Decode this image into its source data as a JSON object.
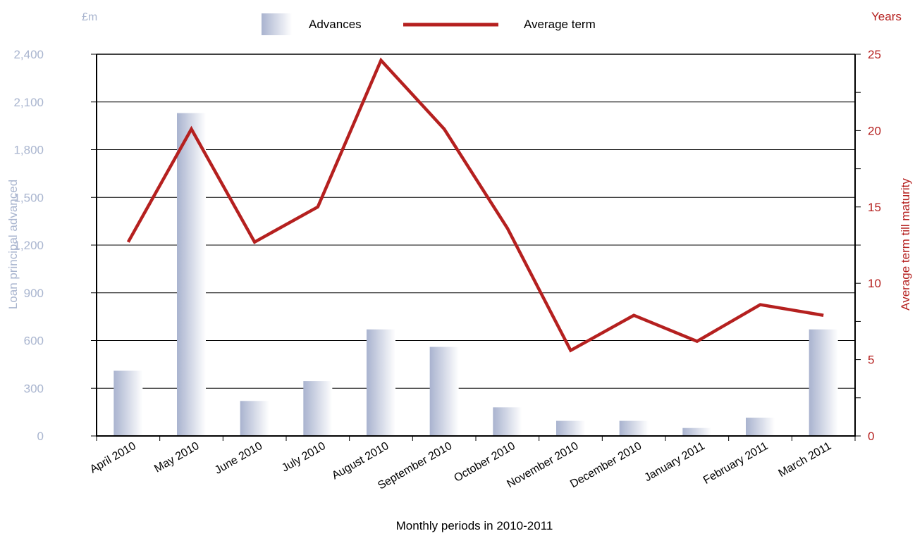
{
  "chart_data": {
    "type": "bar",
    "categories": [
      "April 2010",
      "May 2010",
      "June 2010",
      "July 2010",
      "August 2010",
      "September 2010",
      "October 2010",
      "November 2010",
      "December 2010",
      "January 2011",
      "February 2011",
      "March 2011"
    ],
    "series": [
      {
        "name": "Advances",
        "type": "bar",
        "axis": "left",
        "values": [
          410,
          2030,
          220,
          345,
          670,
          560,
          180,
          95,
          95,
          50,
          115,
          670
        ]
      },
      {
        "name": "Average term",
        "type": "line",
        "axis": "right",
        "values": [
          12.7,
          20.1,
          12.7,
          15.0,
          24.6,
          20.1,
          13.6,
          5.6,
          7.9,
          6.2,
          8.6,
          7.9
        ]
      }
    ],
    "xlabel": "Monthly periods in 2010-2011",
    "ylabel_left": "Loan principal advanced",
    "ylabel_right": "Average term till maturity",
    "unit_left": "£m",
    "unit_right": "Years",
    "ylim_left": [
      0,
      2400
    ],
    "ylim_right": [
      0,
      25
    ],
    "yticks_left": [
      0,
      300,
      600,
      900,
      1200,
      1500,
      1800,
      2100,
      2400
    ],
    "yticks_left_labels": [
      "0",
      "300",
      "600",
      "900",
      "1,200",
      "1,500",
      "1,800",
      "2,100",
      "2,400"
    ],
    "yticks_right": [
      0,
      5,
      10,
      15,
      20,
      25
    ],
    "grid": true,
    "legend_position": "top-center",
    "colors": {
      "bar_light": "#ffffff",
      "bar_dark": "#a9b3cf",
      "line": "#b5201f",
      "left_axis_text": "#a9b5cf",
      "right_axis_text": "#b5201f"
    }
  }
}
